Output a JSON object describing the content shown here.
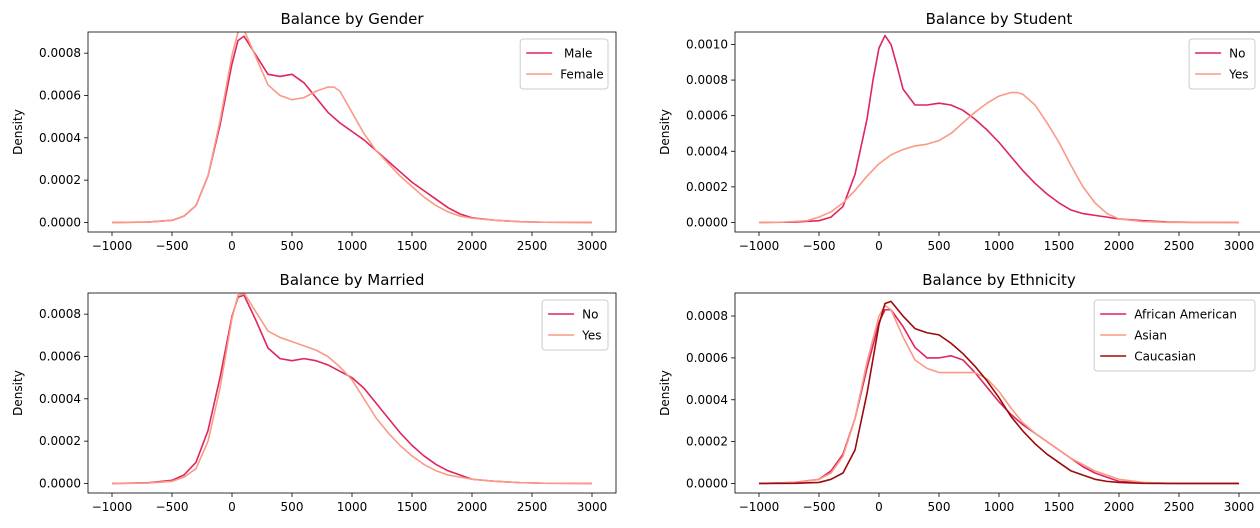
{
  "colors": {
    "series1": "#e0245e",
    "series2": "#fa9a85",
    "series3": "#9b0a0a"
  },
  "chart_data": [
    {
      "type": "line",
      "title": "Balance by Gender",
      "xlabel": "",
      "ylabel": "Density",
      "xlim": [
        -1000,
        3000
      ],
      "ylim": [
        0,
        0.0009
      ],
      "xticks": [
        -1000,
        -500,
        0,
        500,
        1000,
        1500,
        2000,
        2500,
        3000
      ],
      "yticks": [
        0.0,
        0.0002,
        0.0004,
        0.0006,
        0.0008
      ],
      "ytick_decimals": 4,
      "legend": "top-right",
      "grid": false,
      "series": [
        {
          "name": " Male",
          "color": "#e0245e",
          "x": [
            -1000,
            -700,
            -500,
            -400,
            -300,
            -200,
            -100,
            0,
            50,
            100,
            200,
            300,
            400,
            500,
            600,
            700,
            800,
            900,
            1000,
            1100,
            1200,
            1300,
            1400,
            1500,
            1600,
            1700,
            1800,
            1900,
            2000,
            2200,
            2400,
            2600,
            3000
          ],
          "y": [
            0,
            2e-06,
            1e-05,
            3e-05,
            8e-05,
            0.00022,
            0.00046,
            0.00075,
            0.00086,
            0.00088,
            0.00079,
            0.0007,
            0.00069,
            0.0007,
            0.00066,
            0.00059,
            0.00052,
            0.00047,
            0.00043,
            0.00039,
            0.00034,
            0.00029,
            0.00024,
            0.00019,
            0.00015,
            0.00011,
            7e-05,
            4e-05,
            2.2e-05,
            1e-05,
            4e-06,
            1e-06,
            0
          ]
        },
        {
          "name": "Female",
          "color": "#fa9a85",
          "x": [
            -1000,
            -700,
            -500,
            -400,
            -300,
            -200,
            -100,
            0,
            50,
            100,
            200,
            300,
            400,
            500,
            600,
            700,
            800,
            850,
            900,
            1000,
            1100,
            1200,
            1300,
            1400,
            1500,
            1600,
            1700,
            1800,
            1900,
            2000,
            2200,
            2400,
            2600,
            3000
          ],
          "y": [
            0,
            2e-06,
            1e-05,
            3e-05,
            8e-05,
            0.00022,
            0.00048,
            0.00079,
            0.0009,
            0.00091,
            0.00078,
            0.00065,
            0.0006,
            0.00058,
            0.00059,
            0.00062,
            0.00064,
            0.00064,
            0.00062,
            0.00052,
            0.00042,
            0.00034,
            0.00028,
            0.00022,
            0.00017,
            0.00012,
            8e-05,
            5e-05,
            3e-05,
            2e-05,
            1e-05,
            3e-06,
            1e-06,
            0
          ]
        }
      ]
    },
    {
      "type": "line",
      "title": "Balance by Student",
      "xlabel": "",
      "ylabel": "Density",
      "xlim": [
        -1000,
        3000
      ],
      "ylim": [
        0,
        0.00107
      ],
      "xticks": [
        -1000,
        -500,
        0,
        500,
        1000,
        1500,
        2000,
        2500,
        3000
      ],
      "yticks": [
        0.0,
        0.0002,
        0.0004,
        0.0006,
        0.0008,
        0.001
      ],
      "ytick_decimals": 4,
      "legend": "top-right",
      "grid": false,
      "series": [
        {
          "name": "No",
          "color": "#e0245e",
          "x": [
            -1000,
            -700,
            -500,
            -400,
            -300,
            -200,
            -100,
            -50,
            0,
            50,
            100,
            150,
            200,
            300,
            400,
            500,
            600,
            700,
            800,
            900,
            1000,
            1100,
            1200,
            1300,
            1400,
            1500,
            1600,
            1700,
            1800,
            1900,
            2000,
            2200,
            2400,
            2600,
            3000
          ],
          "y": [
            0,
            2e-06,
            1e-05,
            3e-05,
            9e-05,
            0.00027,
            0.00058,
            0.0008,
            0.00098,
            0.00105,
            0.001,
            0.00088,
            0.00075,
            0.00066,
            0.00066,
            0.00067,
            0.00066,
            0.00063,
            0.00058,
            0.00052,
            0.00045,
            0.00037,
            0.00029,
            0.00022,
            0.00016,
            0.00011,
            7e-05,
            5e-05,
            4e-05,
            3e-05,
            2e-05,
            1e-05,
            3e-06,
            1e-06,
            0
          ]
        },
        {
          "name": "Yes",
          "color": "#fa9a85",
          "x": [
            -1000,
            -800,
            -600,
            -500,
            -400,
            -300,
            -200,
            -100,
            0,
            100,
            200,
            300,
            400,
            500,
            600,
            700,
            800,
            900,
            1000,
            1100,
            1150,
            1200,
            1300,
            1400,
            1500,
            1600,
            1700,
            1800,
            1900,
            2000,
            2200,
            2400,
            2600,
            3000
          ],
          "y": [
            0,
            2e-06,
            1e-05,
            3e-05,
            6e-05,
            0.00011,
            0.00018,
            0.00026,
            0.00033,
            0.00038,
            0.00041,
            0.00043,
            0.00044,
            0.00046,
            0.0005,
            0.00056,
            0.00062,
            0.00067,
            0.00071,
            0.00073,
            0.00073,
            0.00072,
            0.00066,
            0.00056,
            0.00045,
            0.00032,
            0.0002,
            0.00011,
            5e-05,
            2e-05,
            5e-06,
            1e-06,
            0,
            0
          ]
        }
      ]
    },
    {
      "type": "line",
      "title": "Balance by Married",
      "xlabel": "",
      "ylabel": "Density",
      "xlim": [
        -1000,
        3000
      ],
      "ylim": [
        0,
        0.0009
      ],
      "xticks": [
        -1000,
        -500,
        0,
        500,
        1000,
        1500,
        2000,
        2500,
        3000
      ],
      "yticks": [
        0.0,
        0.0002,
        0.0004,
        0.0006,
        0.0008
      ],
      "ytick_decimals": 4,
      "legend": "top-right",
      "grid": false,
      "series": [
        {
          "name": "No",
          "color": "#e0245e",
          "x": [
            -1000,
            -700,
            -500,
            -400,
            -300,
            -200,
            -100,
            0,
            50,
            100,
            200,
            300,
            400,
            500,
            600,
            700,
            800,
            900,
            1000,
            1100,
            1200,
            1300,
            1400,
            1500,
            1600,
            1700,
            1800,
            1900,
            2000,
            2200,
            2400,
            2600,
            3000
          ],
          "y": [
            0,
            3e-06,
            1.5e-05,
            4e-05,
            0.0001,
            0.00025,
            0.0005,
            0.00079,
            0.00088,
            0.00089,
            0.00077,
            0.00064,
            0.00059,
            0.00058,
            0.00059,
            0.00058,
            0.00056,
            0.00053,
            0.0005,
            0.00045,
            0.00038,
            0.00031,
            0.00024,
            0.00018,
            0.00013,
            9e-05,
            6e-05,
            4e-05,
            2e-05,
            1e-05,
            4e-06,
            1e-06,
            0
          ]
        },
        {
          "name": "Yes",
          "color": "#fa9a85",
          "x": [
            -1000,
            -700,
            -500,
            -400,
            -300,
            -200,
            -100,
            0,
            50,
            100,
            200,
            300,
            400,
            500,
            600,
            700,
            800,
            900,
            1000,
            1100,
            1200,
            1300,
            1400,
            1500,
            1600,
            1700,
            1800,
            1900,
            2000,
            2200,
            2400,
            2600,
            3000
          ],
          "y": [
            0,
            2e-06,
            1e-05,
            3e-05,
            7e-05,
            0.0002,
            0.00045,
            0.00078,
            0.00089,
            0.0009,
            0.00081,
            0.00072,
            0.00069,
            0.00067,
            0.00065,
            0.00063,
            0.0006,
            0.00055,
            0.00049,
            0.0004,
            0.00031,
            0.00024,
            0.00018,
            0.00013,
            9e-05,
            6e-05,
            4e-05,
            3e-05,
            2e-05,
            1e-05,
            4e-06,
            1e-06,
            0
          ]
        }
      ]
    },
    {
      "type": "line",
      "title": "Balance by Ethnicity",
      "xlabel": "",
      "ylabel": "Density",
      "xlim": [
        -1000,
        3000
      ],
      "ylim": [
        0,
        0.00091
      ],
      "xticks": [
        -1000,
        -500,
        0,
        500,
        1000,
        1500,
        2000,
        2500,
        3000
      ],
      "yticks": [
        0.0,
        0.0002,
        0.0004,
        0.0006,
        0.0008
      ],
      "ytick_decimals": 4,
      "legend": "top-right",
      "grid": false,
      "series": [
        {
          "name": "African American",
          "color": "#e0245e",
          "x": [
            -1000,
            -700,
            -500,
            -400,
            -300,
            -200,
            -100,
            0,
            50,
            100,
            200,
            300,
            400,
            500,
            600,
            700,
            800,
            900,
            1000,
            1100,
            1200,
            1300,
            1400,
            1500,
            1600,
            1700,
            1800,
            1900,
            2000,
            2200,
            2400,
            2600,
            3000
          ],
          "y": [
            0,
            5e-06,
            2e-05,
            6e-05,
            0.00014,
            0.00031,
            0.00055,
            0.00077,
            0.00083,
            0.00083,
            0.00075,
            0.00065,
            0.0006,
            0.0006,
            0.00061,
            0.00059,
            0.00053,
            0.00046,
            0.00039,
            0.00033,
            0.00028,
            0.00024,
            0.0002,
            0.00016,
            0.00012,
            8e-05,
            5e-05,
            3e-05,
            1e-05,
            4e-06,
            1e-06,
            0,
            0
          ]
        },
        {
          "name": "Asian",
          "color": "#fa9a85",
          "x": [
            -1000,
            -700,
            -500,
            -400,
            -300,
            -200,
            -100,
            0,
            50,
            100,
            200,
            300,
            400,
            500,
            600,
            700,
            800,
            900,
            1000,
            1100,
            1200,
            1300,
            1400,
            1500,
            1600,
            1700,
            1800,
            1900,
            2000,
            2200,
            2400,
            2600,
            3000
          ],
          "y": [
            0,
            4e-06,
            2e-05,
            5e-05,
            0.00013,
            0.00031,
            0.00058,
            0.0008,
            0.00085,
            0.00083,
            0.0007,
            0.00059,
            0.00055,
            0.00053,
            0.00053,
            0.00053,
            0.00053,
            0.0005,
            0.00044,
            0.00036,
            0.00029,
            0.00024,
            0.0002,
            0.00016,
            0.00012,
            9e-05,
            6e-05,
            4e-05,
            2e-05,
            5e-06,
            1e-06,
            0,
            0
          ]
        },
        {
          "name": "Caucasian",
          "color": "#9b0a0a",
          "x": [
            -1000,
            -700,
            -500,
            -400,
            -300,
            -200,
            -100,
            0,
            50,
            100,
            200,
            300,
            400,
            500,
            600,
            700,
            800,
            900,
            1000,
            1100,
            1200,
            1300,
            1400,
            1500,
            1600,
            1700,
            1800,
            1900,
            2000,
            2200,
            2400,
            2600,
            3000
          ],
          "y": [
            0,
            1e-06,
            5e-06,
            2e-05,
            5e-05,
            0.00016,
            0.00043,
            0.00076,
            0.00086,
            0.00087,
            0.0008,
            0.00074,
            0.00072,
            0.00071,
            0.00067,
            0.00062,
            0.00056,
            0.00049,
            0.00041,
            0.00032,
            0.00025,
            0.00019,
            0.00014,
            0.0001,
            6e-05,
            4e-05,
            2e-05,
            1e-05,
            5e-06,
            1e-06,
            0,
            0,
            0
          ]
        }
      ]
    }
  ]
}
